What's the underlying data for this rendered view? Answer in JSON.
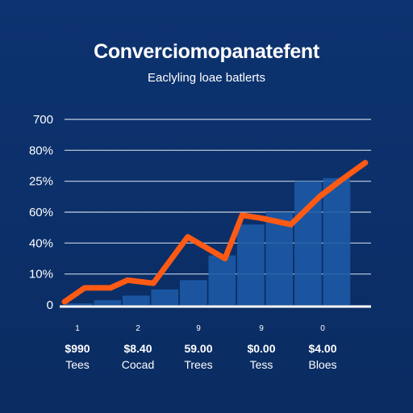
{
  "chart_data": {
    "type": "bar",
    "title": "Converciomopanatefent",
    "subtitle": "Eaclyling loae batlerts",
    "y_tick_labels": [
      "0",
      "10%",
      "40%",
      "60%",
      "25%",
      "80%",
      "700"
    ],
    "x_groups": [
      {
        "index": "1",
        "value_label": "$990",
        "category": "Tees"
      },
      {
        "index": "2",
        "value_label": "$8.40",
        "category": "Cocad"
      },
      {
        "index": "9",
        "value_label": "59.00",
        "category": "Trees"
      },
      {
        "index": "9",
        "value_label": "$0.00",
        "category": "Tess"
      },
      {
        "index": "0",
        "value_label": "$4.00",
        "category": "Bloes"
      }
    ],
    "ylim": [
      0,
      6
    ],
    "grid": true,
    "bars": {
      "x": [
        0.5,
        1.5,
        2.5,
        3.5,
        4.5,
        5.5,
        6.5,
        7.5,
        8.5,
        9.5
      ],
      "values": [
        0.05,
        0.15,
        0.3,
        0.5,
        0.8,
        1.6,
        2.6,
        3.0,
        4.0,
        4.1
      ]
    },
    "line": {
      "x": [
        0,
        0.7,
        1.6,
        2.2,
        3.1,
        4.3,
        5.6,
        6.2,
        6.9,
        7.9,
        8.9,
        9.6,
        10.5
      ],
      "values": [
        0.1,
        0.55,
        0.55,
        0.8,
        0.7,
        2.2,
        1.5,
        2.9,
        2.8,
        2.6,
        3.5,
        4.0,
        4.6
      ]
    },
    "colors": {
      "background": "#0b2f66",
      "bar": "#1d5aa6",
      "line": "#ff5a14",
      "grid": "#e8eef8",
      "text": "#ffffff"
    }
  }
}
